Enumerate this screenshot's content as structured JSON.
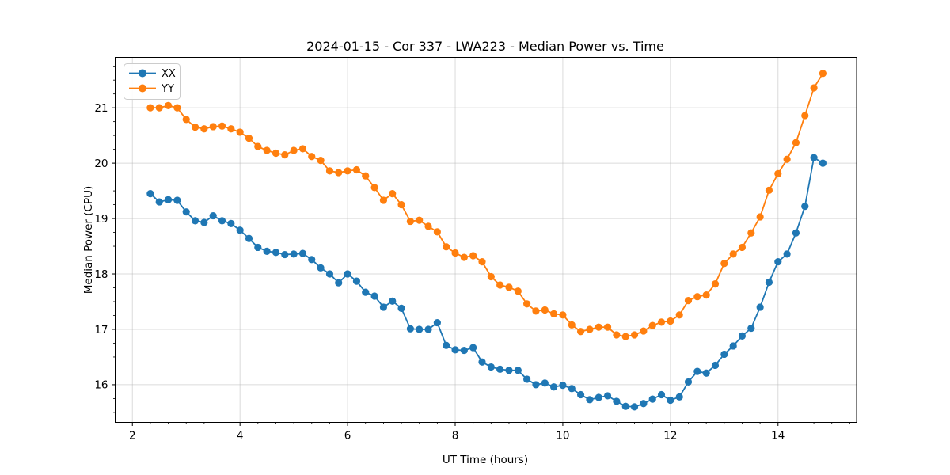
{
  "chart_data": {
    "type": "line",
    "title": "2024-01-15 - Cor 337 - LWA223 - Median Power vs. Time",
    "xlabel": "UT Time (hours)",
    "ylabel": "Median Power (CPU)",
    "x": [
      2.333,
      2.5,
      2.667,
      2.833,
      3.0,
      3.167,
      3.333,
      3.5,
      3.667,
      3.833,
      4.0,
      4.167,
      4.333,
      4.5,
      4.667,
      4.833,
      5.0,
      5.167,
      5.333,
      5.5,
      5.667,
      5.833,
      6.0,
      6.167,
      6.333,
      6.5,
      6.667,
      6.833,
      7.0,
      7.167,
      7.333,
      7.5,
      7.667,
      7.833,
      8.0,
      8.167,
      8.333,
      8.5,
      8.667,
      8.833,
      9.0,
      9.167,
      9.333,
      9.5,
      9.667,
      9.833,
      10.0,
      10.167,
      10.333,
      10.5,
      10.667,
      10.833,
      11.0,
      11.167,
      11.333,
      11.5,
      11.667,
      11.833,
      12.0,
      12.167,
      12.333,
      12.5,
      12.667,
      12.833,
      13.0,
      13.167,
      13.333,
      13.5,
      13.667,
      13.833,
      14.0,
      14.167,
      14.333,
      14.5,
      14.667,
      14.833
    ],
    "series": [
      {
        "name": "XX",
        "color": "#1f77b4",
        "values": [
          19.45,
          19.3,
          19.34,
          19.33,
          19.12,
          18.96,
          18.93,
          19.05,
          18.96,
          18.91,
          18.79,
          18.64,
          18.48,
          18.41,
          18.39,
          18.35,
          18.36,
          18.37,
          18.26,
          18.11,
          18.0,
          17.84,
          18.0,
          17.87,
          17.67,
          17.6,
          17.4,
          17.51,
          17.38,
          17.01,
          17.0,
          17.0,
          17.12,
          16.71,
          16.63,
          16.62,
          16.67,
          16.41,
          16.32,
          16.28,
          16.26,
          16.26,
          16.1,
          16.0,
          16.03,
          15.96,
          15.99,
          15.93,
          15.82,
          15.73,
          15.77,
          15.8,
          15.7,
          15.61,
          15.6,
          15.66,
          15.74,
          15.82,
          15.72,
          15.78,
          16.05,
          16.24,
          16.21,
          16.35,
          16.55,
          16.7,
          16.88,
          17.02,
          17.4,
          17.85,
          18.22,
          18.36,
          18.74,
          19.22,
          20.1,
          20.0
        ]
      },
      {
        "name": "YY",
        "color": "#ff7f0e",
        "values": [
          21.0,
          21.0,
          21.04,
          21.0,
          20.79,
          20.65,
          20.62,
          20.66,
          20.67,
          20.62,
          20.56,
          20.45,
          20.3,
          20.23,
          20.18,
          20.15,
          20.23,
          20.26,
          20.12,
          20.05,
          19.86,
          19.83,
          19.86,
          19.88,
          19.77,
          19.56,
          19.33,
          19.45,
          19.25,
          18.95,
          18.97,
          18.86,
          18.76,
          18.49,
          18.38,
          18.3,
          18.33,
          18.22,
          17.95,
          17.8,
          17.76,
          17.69,
          17.46,
          17.33,
          17.35,
          17.28,
          17.26,
          17.08,
          16.96,
          17.0,
          17.04,
          17.04,
          16.9,
          16.87,
          16.9,
          16.97,
          17.07,
          17.13,
          17.15,
          17.26,
          17.52,
          17.59,
          17.62,
          17.82,
          18.19,
          18.36,
          18.48,
          18.74,
          19.03,
          19.51,
          19.81,
          20.07,
          20.37,
          20.86,
          21.36,
          21.62
        ]
      }
    ],
    "xlim": [
      1.68,
      15.46
    ],
    "ylim": [
      15.32,
      21.91
    ],
    "x_ticks": [
      2,
      4,
      6,
      8,
      10,
      12,
      14
    ],
    "y_ticks": [
      16,
      17,
      18,
      19,
      20,
      21
    ],
    "x_minor_step": 0.33333,
    "y_minor_step": 0.25,
    "grid": true,
    "legend_position": "upper-left",
    "marker": "circle",
    "colors": {
      "grid": "#b0b0b0",
      "spine": "#000000",
      "text": "#000000",
      "background": "#ffffff"
    }
  }
}
